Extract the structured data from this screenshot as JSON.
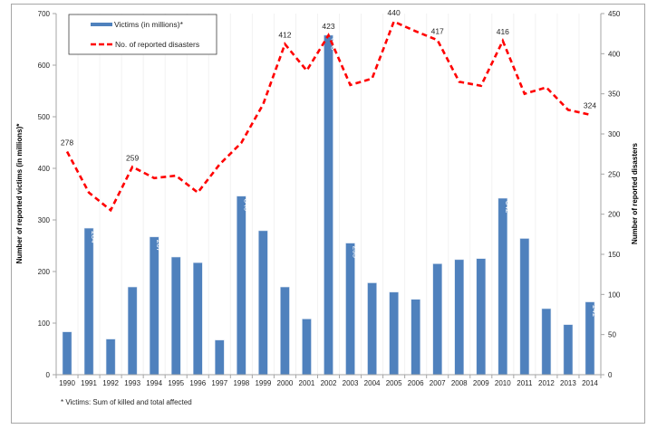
{
  "chart_data": {
    "type": "bar",
    "title": "",
    "categories": [
      "1990",
      "1991",
      "1992",
      "1993",
      "1994",
      "1995",
      "1996",
      "1997",
      "1998",
      "1999",
      "2000",
      "2001",
      "2002",
      "2003",
      "2004",
      "2005",
      "2006",
      "2007",
      "2008",
      "2009",
      "2010",
      "2011",
      "2012",
      "2013",
      "2014"
    ],
    "series": [
      {
        "name": "Victims (in millions)*",
        "type": "bar",
        "axis": "left",
        "color": "#4f81bd",
        "values": [
          83,
          284,
          69,
          170,
          267,
          228,
          217,
          67,
          346,
          279,
          170,
          108,
          658,
          255,
          178,
          160,
          146,
          215,
          223,
          225,
          342,
          264,
          128,
          97,
          141
        ],
        "labels": {
          "1991": "284",
          "1994": "267",
          "1998": "346",
          "2002": "658",
          "2003": "255",
          "2010": "342",
          "2014": "141"
        }
      },
      {
        "name": "No. of reported disasters",
        "type": "line",
        "axis": "right",
        "color": "#ff0000",
        "style": "dashed",
        "values": [
          278,
          227,
          205,
          259,
          245,
          248,
          227,
          262,
          289,
          337,
          412,
          379,
          423,
          361,
          369,
          440,
          428,
          417,
          365,
          360,
          416,
          350,
          358,
          330,
          324
        ],
        "labels": {
          "1990": "278",
          "1993": "259",
          "2000": "412",
          "2002": "423",
          "2005": "440",
          "2007": "417",
          "2010": "416",
          "2014": "324"
        }
      }
    ],
    "ylabel": "Number of reported victims (in millions)*",
    "y2label": "Number of reported disasters",
    "xlabel": "",
    "ylim": [
      0,
      700
    ],
    "y2lim": [
      0,
      450
    ],
    "yticks": [
      "0",
      "100",
      "200",
      "300",
      "400",
      "500",
      "600",
      "700"
    ],
    "y2ticks": [
      "0",
      "50",
      "100",
      "150",
      "200",
      "250",
      "300",
      "350",
      "400",
      "450"
    ],
    "legend_position": "top-left",
    "grid": false,
    "footnote": "* Victims: Sum of killed and total affected"
  }
}
